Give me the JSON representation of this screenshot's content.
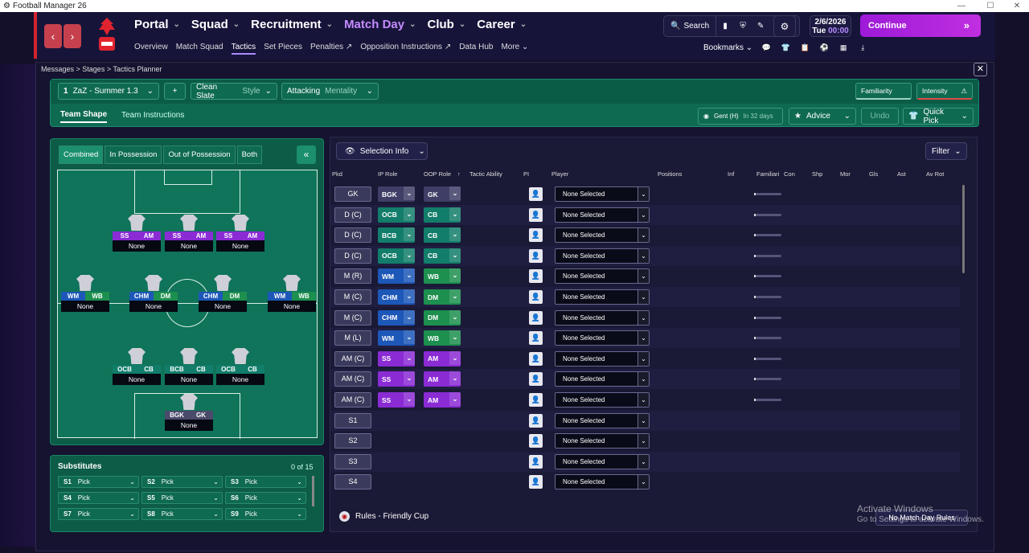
{
  "window": {
    "title": "Football Manager 26",
    "controls": [
      "—",
      "☐",
      "✕"
    ]
  },
  "nav": {
    "back": "‹",
    "forward": "›",
    "main": [
      "Portal",
      "Squad",
      "Recruitment",
      "Match Day",
      "Club",
      "Career"
    ],
    "sub": [
      "Overview",
      "Match Squad",
      "Tactics",
      "Set Pieces",
      "Penalties",
      "Opposition Instructions",
      "Data Hub",
      "More"
    ]
  },
  "tools": {
    "search": "Search"
  },
  "date": {
    "date": "2/6/2026",
    "day": "Tue",
    "time": "00:00"
  },
  "continue": "Continue",
  "bookmarks": "Bookmarks",
  "breadcrumb": [
    "Messages",
    "Stages",
    "Tactics Planner"
  ],
  "tactic": {
    "slot": "1",
    "name": "ZaZ - Summer 1.3",
    "add": "+",
    "style_value": "Clean Slate",
    "style_label": "Style",
    "mentality_value": "Attacking",
    "mentality_label": "Mentality",
    "familiarity": "Familiarity",
    "intensity": "Intensity"
  },
  "tabs": {
    "shape": "Team Shape",
    "instructions": "Team Instructions"
  },
  "fixture": {
    "opponent": "Gent (H)",
    "when": "In 32 days"
  },
  "actions": {
    "advice": "Advice",
    "undo": "Undo",
    "quickpick": "Quick Pick"
  },
  "pitch_tabs": [
    "Combined",
    "In Possession",
    "Out of Possession",
    "Both"
  ],
  "players": [
    {
      "r1": "SS",
      "r2": "AM",
      "name": "None",
      "c1": "#8a2bd4",
      "c2": "#8a2bd4"
    },
    {
      "r1": "SS",
      "r2": "AM",
      "name": "None",
      "c1": "#8a2bd4",
      "c2": "#8a2bd4"
    },
    {
      "r1": "SS",
      "r2": "AM",
      "name": "None",
      "c1": "#8a2bd4",
      "c2": "#8a2bd4"
    },
    {
      "r1": "WM",
      "r2": "WB",
      "name": "None",
      "c1": "#1d57b8",
      "c2": "#1d8f4e"
    },
    {
      "r1": "CHM",
      "r2": "DM",
      "name": "None",
      "c1": "#1d57b8",
      "c2": "#1d8f4e"
    },
    {
      "r1": "CHM",
      "r2": "DM",
      "name": "None",
      "c1": "#1d57b8",
      "c2": "#1d8f4e"
    },
    {
      "r1": "WM",
      "r2": "WB",
      "name": "None",
      "c1": "#1d57b8",
      "c2": "#1d8f4e"
    },
    {
      "r1": "OCB",
      "r2": "CB",
      "name": "None",
      "c1": "#127d6a",
      "c2": "#127d6a"
    },
    {
      "r1": "BCB",
      "r2": "CB",
      "name": "None",
      "c1": "#127d6a",
      "c2": "#127d6a"
    },
    {
      "r1": "OCB",
      "r2": "CB",
      "name": "None",
      "c1": "#127d6a",
      "c2": "#127d6a"
    },
    {
      "r1": "BGK",
      "r2": "GK",
      "name": "None",
      "c1": "#4a4a6a",
      "c2": "#4a4a6a"
    }
  ],
  "subs": {
    "title": "Substitutes",
    "count": "0 of 15",
    "slots": [
      {
        "n": "S1",
        "v": "Pick"
      },
      {
        "n": "S2",
        "v": "Pick"
      },
      {
        "n": "S3",
        "v": "Pick"
      },
      {
        "n": "S4",
        "v": "Pick"
      },
      {
        "n": "S5",
        "v": "Pick"
      },
      {
        "n": "S6",
        "v": "Pick"
      },
      {
        "n": "S7",
        "v": "Pick"
      },
      {
        "n": "S8",
        "v": "Pick"
      },
      {
        "n": "S9",
        "v": "Pick"
      }
    ]
  },
  "table": {
    "selection_info": "Selection Info",
    "filter": "Filter",
    "columns": [
      "Pkd",
      "IP Role",
      "OOP Role",
      "Tactic Ability",
      "PI",
      "Player",
      "Positions",
      "Inf",
      "Familiarity",
      "Con",
      "Shp",
      "Mor",
      "Gls",
      "Ast",
      "Av Rot"
    ],
    "rows": [
      {
        "pkd": "GK",
        "ip": "BGK",
        "oop": "GK",
        "player": "None Selected"
      },
      {
        "pkd": "D (C)",
        "ip": "OCB",
        "oop": "CB",
        "player": "None Selected"
      },
      {
        "pkd": "D (C)",
        "ip": "BCB",
        "oop": "CB",
        "player": "None Selected"
      },
      {
        "pkd": "D (C)",
        "ip": "OCB",
        "oop": "CB",
        "player": "None Selected"
      },
      {
        "pkd": "M (R)",
        "ip": "WM",
        "oop": "WB",
        "player": "None Selected"
      },
      {
        "pkd": "M (C)",
        "ip": "CHM",
        "oop": "DM",
        "player": "None Selected"
      },
      {
        "pkd": "M (C)",
        "ip": "CHM",
        "oop": "DM",
        "player": "None Selected"
      },
      {
        "pkd": "M (L)",
        "ip": "WM",
        "oop": "WB",
        "player": "None Selected"
      },
      {
        "pkd": "AM (C)",
        "ip": "SS",
        "oop": "AM",
        "player": "None Selected"
      },
      {
        "pkd": "AM (C)",
        "ip": "SS",
        "oop": "AM",
        "player": "None Selected"
      },
      {
        "pkd": "AM (C)",
        "ip": "SS",
        "oop": "AM",
        "player": "None Selected"
      },
      {
        "pkd": "S1",
        "ip": "",
        "oop": "",
        "player": "None Selected"
      },
      {
        "pkd": "S2",
        "ip": "",
        "oop": "",
        "player": "None Selected"
      },
      {
        "pkd": "S3",
        "ip": "",
        "oop": "",
        "player": "None Selected"
      },
      {
        "pkd": "S4",
        "ip": "",
        "oop": "",
        "player": "None Selected"
      }
    ]
  },
  "rules": "Rules - Friendly Cup",
  "no_match_day_rules": "No Match Day Rules",
  "watermark": {
    "line1": "Activate Windows",
    "line2": "Go to Settings to activate Windows."
  },
  "colors": {
    "gk": "#3e3e66",
    "def": "#127d6a",
    "mid_ip": "#1d57b8",
    "mid_oop": "#1d8f4e",
    "att": "#8a2bd4"
  }
}
